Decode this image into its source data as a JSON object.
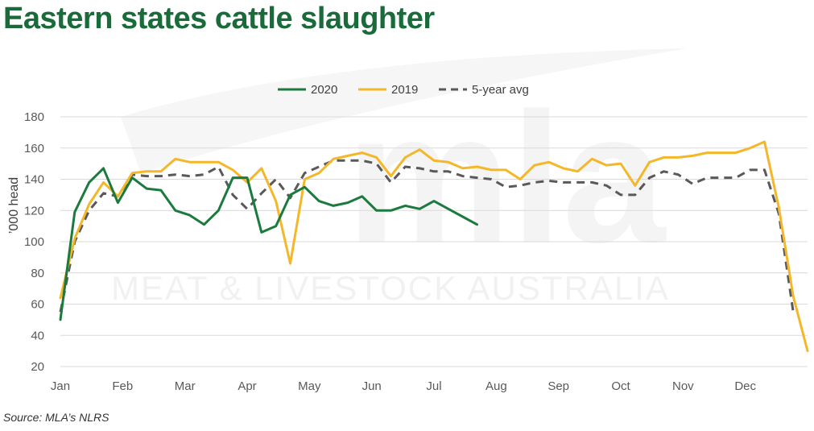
{
  "title": "Eastern states cattle slaughter",
  "source": "Source: MLA’s NLRS",
  "watermark": {
    "logo_text": "mla",
    "tagline": "MEAT & LIVESTOCK AUSTRALIA"
  },
  "colors": {
    "title": "#1a6b3a",
    "s2020": "#1b7a3e",
    "s2019": "#f5b72a",
    "avg": "#595959"
  },
  "chart_data": {
    "type": "line",
    "title": "Eastern states cattle slaughter",
    "ylabel": "’000 head",
    "xlabel": "",
    "ylim": [
      20,
      180
    ],
    "yticks": [
      20,
      40,
      60,
      80,
      100,
      120,
      140,
      160,
      180
    ],
    "xlim": [
      1,
      53
    ],
    "month_labels": [
      "Jan",
      "Feb",
      "Mar",
      "Apr",
      "May",
      "Jun",
      "Jul",
      "Aug",
      "Sep",
      "Oct",
      "Nov",
      "Dec"
    ],
    "x_axis_unit": "week of year",
    "grid": "horizontal",
    "legend_position": "top",
    "series": [
      {
        "name": "2020",
        "color": "#1b7a3e",
        "style": "solid",
        "x": [
          1,
          2,
          3,
          4,
          5,
          6,
          7,
          8,
          9,
          10,
          11,
          12,
          13,
          14,
          15,
          16,
          17,
          18,
          19,
          20,
          21,
          22,
          23,
          24,
          25,
          26,
          27,
          28,
          29,
          30,
          31
        ],
        "values": [
          50,
          119,
          138,
          147,
          125,
          141,
          134,
          133,
          120,
          117,
          111,
          120,
          141,
          141,
          106,
          110,
          130,
          135,
          126,
          123,
          125,
          129,
          120,
          120,
          123,
          121,
          126,
          121,
          116,
          111,
          null
        ]
      },
      {
        "name": "2019",
        "color": "#f5b72a",
        "style": "solid",
        "x": [
          1,
          2,
          3,
          4,
          5,
          6,
          7,
          8,
          9,
          10,
          11,
          12,
          13,
          14,
          15,
          16,
          17,
          18,
          19,
          20,
          21,
          22,
          23,
          24,
          25,
          26,
          27,
          28,
          29,
          30,
          31,
          32,
          33,
          34,
          35,
          36,
          37,
          38,
          39,
          40,
          41,
          42,
          43,
          44,
          45,
          46,
          47,
          48,
          49,
          50,
          51,
          52,
          53
        ],
        "values": [
          64,
          102,
          124,
          138,
          129,
          144,
          145,
          145,
          153,
          151,
          151,
          151,
          146,
          138,
          147,
          126,
          86,
          140,
          144,
          153,
          155,
          157,
          154,
          142,
          154,
          159,
          152,
          151,
          147,
          148,
          146,
          146,
          140,
          149,
          151,
          147,
          145,
          153,
          149,
          150,
          136,
          151,
          154,
          154,
          155,
          157,
          157,
          157,
          160,
          164,
          122,
          65,
          30
        ]
      },
      {
        "name": "5-year avg",
        "color": "#595959",
        "style": "dashed",
        "x": [
          1,
          2,
          3,
          4,
          5,
          6,
          7,
          8,
          9,
          10,
          11,
          12,
          13,
          14,
          15,
          16,
          17,
          18,
          19,
          20,
          21,
          22,
          23,
          24,
          25,
          26,
          27,
          28,
          29,
          30,
          31,
          32,
          33,
          34,
          35,
          36,
          37,
          38,
          39,
          40,
          41,
          42,
          43,
          44,
          45,
          46,
          47,
          48,
          49,
          50,
          51,
          52,
          53
        ],
        "values": [
          55,
          100,
          120,
          131,
          129,
          143,
          142,
          142,
          143,
          142,
          143,
          148,
          130,
          121,
          131,
          140,
          128,
          144,
          148,
          152,
          152,
          152,
          150,
          138,
          148,
          147,
          145,
          145,
          142,
          141,
          140,
          135,
          136,
          138,
          139,
          138,
          138,
          138,
          136,
          130,
          130,
          141,
          145,
          143,
          137,
          141,
          141,
          141,
          146,
          146,
          118,
          55,
          null
        ]
      }
    ]
  }
}
